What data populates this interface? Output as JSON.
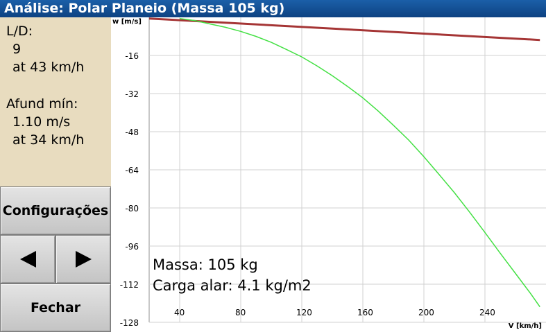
{
  "window": {
    "title": "Análise: Polar Planeio (Massa 105 kg)"
  },
  "info": {
    "ld_label": "L/D:",
    "ld_value": "9",
    "ld_speed": "at 43 km/h",
    "sink_label": "Afund mín:",
    "sink_value": "1.10 m/s",
    "sink_speed": "at 34 km/h"
  },
  "buttons": {
    "settings": "Configurações",
    "prev": "◀",
    "next": "▶",
    "close": "Fechar"
  },
  "chart_data": {
    "type": "line",
    "xlabel": "V [km/h]",
    "ylabel": "w [m/s]",
    "x_ticks": [
      "40",
      "80",
      "120",
      "160",
      "200",
      "240"
    ],
    "y_ticks": [
      "-16",
      "-32",
      "-48",
      "-64",
      "-80",
      "-96",
      "-112",
      "-128"
    ],
    "xlim": [
      20,
      280
    ],
    "ylim": [
      -128,
      0
    ],
    "grid": true,
    "annotations": [
      "Massa: 105 kg",
      "Carga alar: 4.1 kg/m2"
    ],
    "series": [
      {
        "color": "#a53535",
        "x": [
          20,
          276
        ],
        "y": [
          -0.5,
          -9.5
        ]
      },
      {
        "color": "#43e043",
        "x": [
          40,
          50,
          60,
          70,
          80,
          90,
          100,
          110,
          120,
          130,
          140,
          150,
          160,
          170,
          180,
          190,
          200,
          210,
          220,
          230,
          240,
          250,
          260,
          270,
          276
        ],
        "y": [
          -0.5,
          -1.4,
          -2.8,
          -4.2,
          -5.9,
          -8.0,
          -10.5,
          -13.5,
          -16.6,
          -20.4,
          -24.5,
          -29.0,
          -33.8,
          -39.3,
          -45.3,
          -51.5,
          -58.5,
          -66.0,
          -73.6,
          -81.8,
          -90.3,
          -99.0,
          -107.5,
          -116.0,
          -121.5
        ]
      }
    ]
  }
}
